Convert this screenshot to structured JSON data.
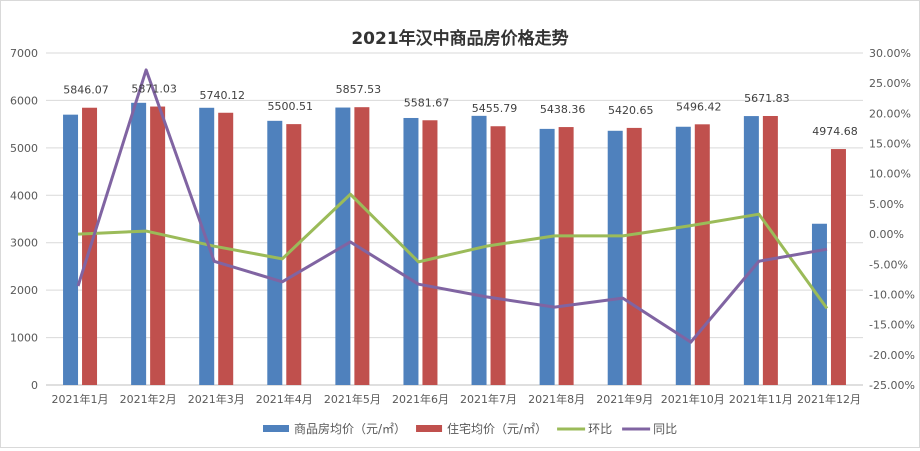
{
  "chart_data": {
    "type": "bar+line",
    "title": "2021年汉中商品房价格走势",
    "categories": [
      "2021年1月",
      "2021年2月",
      "2021年3月",
      "2021年4月",
      "2021年5月",
      "2021年6月",
      "2021年7月",
      "2021年8月",
      "2021年9月",
      "2021年10月",
      "2021年11月",
      "2021年12月"
    ],
    "y_left": {
      "range": [
        0,
        7000
      ],
      "ticks": [
        "0",
        "1000",
        "2000",
        "3000",
        "4000",
        "5000",
        "6000",
        "7000"
      ]
    },
    "y_right": {
      "range": [
        -25,
        30
      ],
      "ticks": [
        "-25.00%",
        "-20.00%",
        "-15.00%",
        "-10.00%",
        "-5.00%",
        "0.00%",
        "5.00%",
        "10.00%",
        "15.00%",
        "20.00%",
        "25.00%",
        "30.00%"
      ]
    },
    "grid": true,
    "legend_position": "bottom",
    "series": [
      {
        "name": "商品房均价（元/㎡）",
        "type": "bar",
        "axis": "left",
        "color": "#4f81bd",
        "values": [
          5700,
          5950,
          5845,
          5570,
          5850,
          5630,
          5675,
          5400,
          5360,
          5445,
          5670,
          3400
        ]
      },
      {
        "name": "住宅均价（元/㎡）",
        "type": "bar",
        "axis": "left",
        "color": "#c0504d",
        "values": [
          5846.07,
          5871.03,
          5740.12,
          5500.51,
          5857.53,
          5581.67,
          5455.79,
          5438.36,
          5420.65,
          5496.42,
          5671.83,
          4974.68
        ],
        "labels": [
          "5846.07",
          "5871.03",
          "5740.12",
          "5500.51",
          "5857.53",
          "5581.67",
          "5455.79",
          "5438.36",
          "5420.65",
          "5496.42",
          "5671.83",
          "4974.68"
        ]
      },
      {
        "name": "环比",
        "type": "line",
        "axis": "right",
        "color": "#9bbb59",
        "values": [
          0.0,
          0.5,
          -2.0,
          -4.1,
          6.6,
          -4.6,
          -2.0,
          -0.3,
          -0.3,
          1.4,
          3.3,
          -12.3
        ]
      },
      {
        "name": "同比",
        "type": "line",
        "axis": "right",
        "color": "#8064a2",
        "values": [
          -8.6,
          27.2,
          -4.5,
          -7.9,
          -1.3,
          -8.3,
          -10.4,
          -12.1,
          -10.6,
          -17.9,
          -4.5,
          -2.5
        ]
      }
    ]
  }
}
